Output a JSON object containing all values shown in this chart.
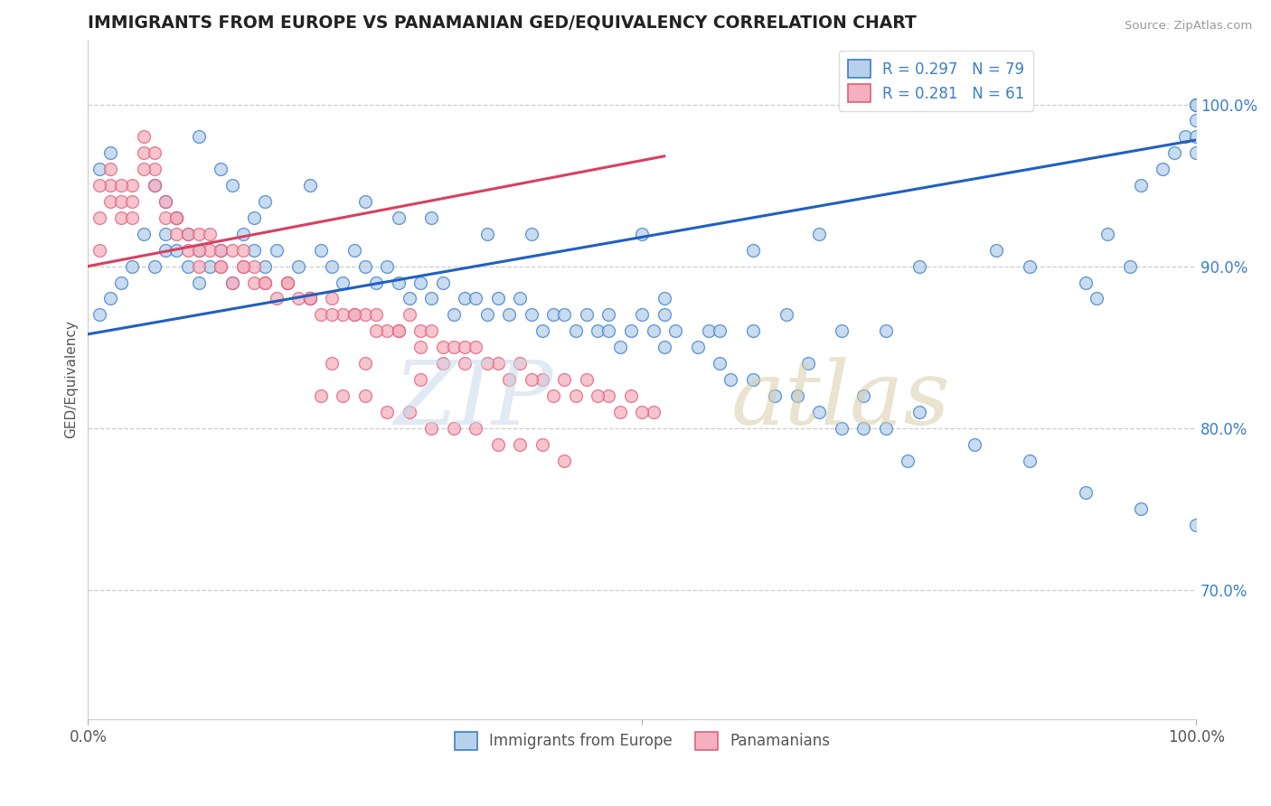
{
  "title": "IMMIGRANTS FROM EUROPE VS PANAMANIAN GED/EQUIVALENCY CORRELATION CHART",
  "source": "Source: ZipAtlas.com",
  "ylabel": "GED/Equivalency",
  "y_ticks_right": [
    0.7,
    0.8,
    0.9,
    1.0
  ],
  "y_tick_labels_right": [
    "70.0%",
    "80.0%",
    "90.0%",
    "100.0%"
  ],
  "xlim": [
    0.0,
    1.0
  ],
  "ylim": [
    0.62,
    1.04
  ],
  "blue_fill": "#b8d0ea",
  "blue_edge": "#3a7fc8",
  "pink_fill": "#f4b0be",
  "pink_edge": "#e0607a",
  "blue_line_color": "#2060c0",
  "pink_line_color": "#d84060",
  "legend_blue_label": "R = 0.297   N = 79",
  "legend_pink_label": "R = 0.281   N = 61",
  "blue_line_x": [
    0.0,
    1.0
  ],
  "blue_line_y": [
    0.858,
    0.978
  ],
  "pink_line_x": [
    0.0,
    0.52
  ],
  "pink_line_y": [
    0.9,
    0.968
  ],
  "blue_scatter_x": [
    0.01,
    0.02,
    0.03,
    0.04,
    0.05,
    0.06,
    0.07,
    0.07,
    0.08,
    0.08,
    0.09,
    0.09,
    0.1,
    0.1,
    0.11,
    0.12,
    0.13,
    0.14,
    0.15,
    0.16,
    0.17,
    0.18,
    0.19,
    0.2,
    0.21,
    0.22,
    0.23,
    0.24,
    0.25,
    0.26,
    0.27,
    0.28,
    0.29,
    0.3,
    0.31,
    0.32,
    0.33,
    0.34,
    0.35,
    0.36,
    0.37,
    0.38,
    0.39,
    0.4,
    0.41,
    0.42,
    0.43,
    0.44,
    0.45,
    0.46,
    0.47,
    0.48,
    0.49,
    0.5,
    0.51,
    0.52,
    0.53,
    0.55,
    0.57,
    0.58,
    0.6,
    0.62,
    0.64,
    0.66,
    0.68,
    0.7,
    0.72,
    0.74,
    0.52,
    0.56,
    0.6,
    0.65,
    0.7,
    0.75,
    0.8,
    0.85,
    0.9,
    0.95,
    1.0
  ],
  "blue_scatter_y": [
    0.87,
    0.88,
    0.89,
    0.9,
    0.92,
    0.9,
    0.91,
    0.92,
    0.93,
    0.91,
    0.92,
    0.9,
    0.91,
    0.89,
    0.9,
    0.91,
    0.89,
    0.92,
    0.91,
    0.9,
    0.91,
    0.89,
    0.9,
    0.88,
    0.91,
    0.9,
    0.89,
    0.91,
    0.9,
    0.89,
    0.9,
    0.89,
    0.88,
    0.89,
    0.88,
    0.89,
    0.87,
    0.88,
    0.88,
    0.87,
    0.88,
    0.87,
    0.88,
    0.87,
    0.86,
    0.87,
    0.87,
    0.86,
    0.87,
    0.86,
    0.86,
    0.85,
    0.86,
    0.87,
    0.86,
    0.85,
    0.86,
    0.85,
    0.84,
    0.83,
    0.83,
    0.82,
    0.82,
    0.81,
    0.8,
    0.8,
    0.8,
    0.78,
    0.88,
    0.86,
    0.86,
    0.84,
    0.82,
    0.81,
    0.79,
    0.78,
    0.76,
    0.75,
    0.74
  ],
  "blue_scatter_x2": [
    0.01,
    0.02,
    0.06,
    0.07,
    0.1,
    0.12,
    0.13,
    0.15,
    0.16,
    0.2,
    0.25,
    0.28,
    0.31,
    0.36,
    0.4,
    0.5,
    0.6,
    0.66,
    0.75,
    0.82,
    0.85,
    0.9,
    0.91,
    0.92,
    0.94,
    0.95,
    0.97,
    0.98,
    0.99,
    1.0,
    1.0,
    1.0,
    1.0,
    1.0,
    0.47,
    0.52,
    0.57,
    0.63,
    0.68,
    0.72
  ],
  "blue_scatter_y2": [
    0.96,
    0.97,
    0.95,
    0.94,
    0.98,
    0.96,
    0.95,
    0.93,
    0.94,
    0.95,
    0.94,
    0.93,
    0.93,
    0.92,
    0.92,
    0.92,
    0.91,
    0.92,
    0.9,
    0.91,
    0.9,
    0.89,
    0.88,
    0.92,
    0.9,
    0.95,
    0.96,
    0.97,
    0.98,
    0.97,
    0.98,
    0.99,
    1.0,
    1.0,
    0.87,
    0.87,
    0.86,
    0.87,
    0.86,
    0.86
  ],
  "pink_scatter_x": [
    0.01,
    0.01,
    0.02,
    0.02,
    0.03,
    0.03,
    0.04,
    0.04,
    0.05,
    0.05,
    0.06,
    0.06,
    0.07,
    0.07,
    0.08,
    0.08,
    0.09,
    0.09,
    0.1,
    0.1,
    0.11,
    0.11,
    0.12,
    0.12,
    0.13,
    0.13,
    0.14,
    0.14,
    0.15,
    0.15,
    0.16,
    0.17,
    0.18,
    0.19,
    0.2,
    0.21,
    0.22,
    0.23,
    0.24,
    0.25,
    0.26,
    0.27,
    0.28,
    0.29,
    0.3,
    0.31,
    0.32,
    0.33,
    0.34,
    0.35,
    0.37,
    0.39,
    0.41,
    0.43,
    0.45,
    0.47,
    0.49,
    0.51,
    0.22,
    0.25,
    0.3
  ],
  "pink_scatter_y": [
    0.91,
    0.93,
    0.94,
    0.95,
    0.93,
    0.94,
    0.93,
    0.95,
    0.97,
    0.98,
    0.96,
    0.97,
    0.94,
    0.93,
    0.93,
    0.92,
    0.92,
    0.91,
    0.92,
    0.9,
    0.91,
    0.92,
    0.91,
    0.9,
    0.89,
    0.91,
    0.9,
    0.91,
    0.9,
    0.89,
    0.89,
    0.88,
    0.89,
    0.88,
    0.88,
    0.87,
    0.88,
    0.87,
    0.87,
    0.87,
    0.87,
    0.86,
    0.86,
    0.87,
    0.86,
    0.86,
    0.85,
    0.85,
    0.85,
    0.85,
    0.84,
    0.84,
    0.83,
    0.83,
    0.83,
    0.82,
    0.82,
    0.81,
    0.84,
    0.84,
    0.83
  ],
  "pink_scatter_x2": [
    0.01,
    0.02,
    0.03,
    0.04,
    0.05,
    0.06,
    0.08,
    0.1,
    0.12,
    0.14,
    0.16,
    0.18,
    0.2,
    0.22,
    0.24,
    0.26,
    0.28,
    0.3,
    0.32,
    0.34,
    0.36,
    0.38,
    0.4,
    0.42,
    0.44,
    0.46,
    0.48,
    0.5,
    0.21,
    0.23,
    0.25,
    0.27,
    0.29,
    0.31,
    0.33,
    0.35,
    0.37,
    0.39,
    0.41,
    0.43
  ],
  "pink_scatter_y2": [
    0.95,
    0.96,
    0.95,
    0.94,
    0.96,
    0.95,
    0.93,
    0.91,
    0.9,
    0.9,
    0.89,
    0.89,
    0.88,
    0.87,
    0.87,
    0.86,
    0.86,
    0.85,
    0.84,
    0.84,
    0.84,
    0.83,
    0.83,
    0.82,
    0.82,
    0.82,
    0.81,
    0.81,
    0.82,
    0.82,
    0.82,
    0.81,
    0.81,
    0.8,
    0.8,
    0.8,
    0.79,
    0.79,
    0.79,
    0.78
  ]
}
